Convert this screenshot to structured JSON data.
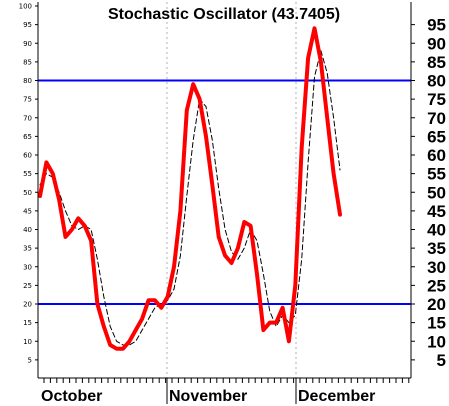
{
  "chart_data": {
    "type": "line",
    "title": "Stochastic Oscillator (43.7405)",
    "left_ticks": [
      "5",
      "10",
      "15",
      "20",
      "25",
      "30",
      "35",
      "40",
      "45",
      "50",
      "55",
      "60",
      "65",
      "70",
      "75",
      "80",
      "85",
      "90",
      "95",
      "100"
    ],
    "right_ticks": [
      "5",
      "10",
      "15",
      "20",
      "25",
      "30",
      "35",
      "40",
      "45",
      "50",
      "55",
      "60",
      "65",
      "70",
      "75",
      "80",
      "85",
      "90",
      "95"
    ],
    "month_labels": [
      "October",
      "November",
      "December"
    ],
    "ylim": [
      0,
      100
    ],
    "reference_lines": [
      {
        "value": 80,
        "color": "#0000ff"
      },
      {
        "value": 20,
        "color": "#0000ff"
      }
    ],
    "grid": false,
    "series": [
      {
        "style": "thick",
        "color": "#ff0000",
        "values": [
          49,
          58,
          55,
          48,
          38,
          40,
          43,
          41,
          37,
          20,
          14,
          9,
          8,
          8,
          10,
          13,
          16,
          21,
          21,
          19,
          22,
          30,
          45,
          72,
          79,
          75,
          65,
          52,
          38,
          33,
          31,
          35,
          42,
          41,
          28,
          13,
          15,
          15,
          19,
          10,
          25,
          62,
          86,
          94,
          85,
          70,
          55,
          44
        ]
      },
      {
        "style": "thin-dashed",
        "color": "#000000",
        "values": [
          52,
          55,
          54,
          50,
          45,
          41,
          40,
          41,
          40,
          32,
          22,
          14,
          10,
          9,
          9,
          10,
          13,
          16,
          19,
          20,
          21,
          24,
          33,
          49,
          64,
          75,
          73,
          64,
          51,
          40,
          34,
          32,
          35,
          40,
          37,
          28,
          18,
          14,
          17,
          15,
          17,
          32,
          58,
          81,
          88,
          82,
          70,
          56
        ]
      }
    ]
  }
}
